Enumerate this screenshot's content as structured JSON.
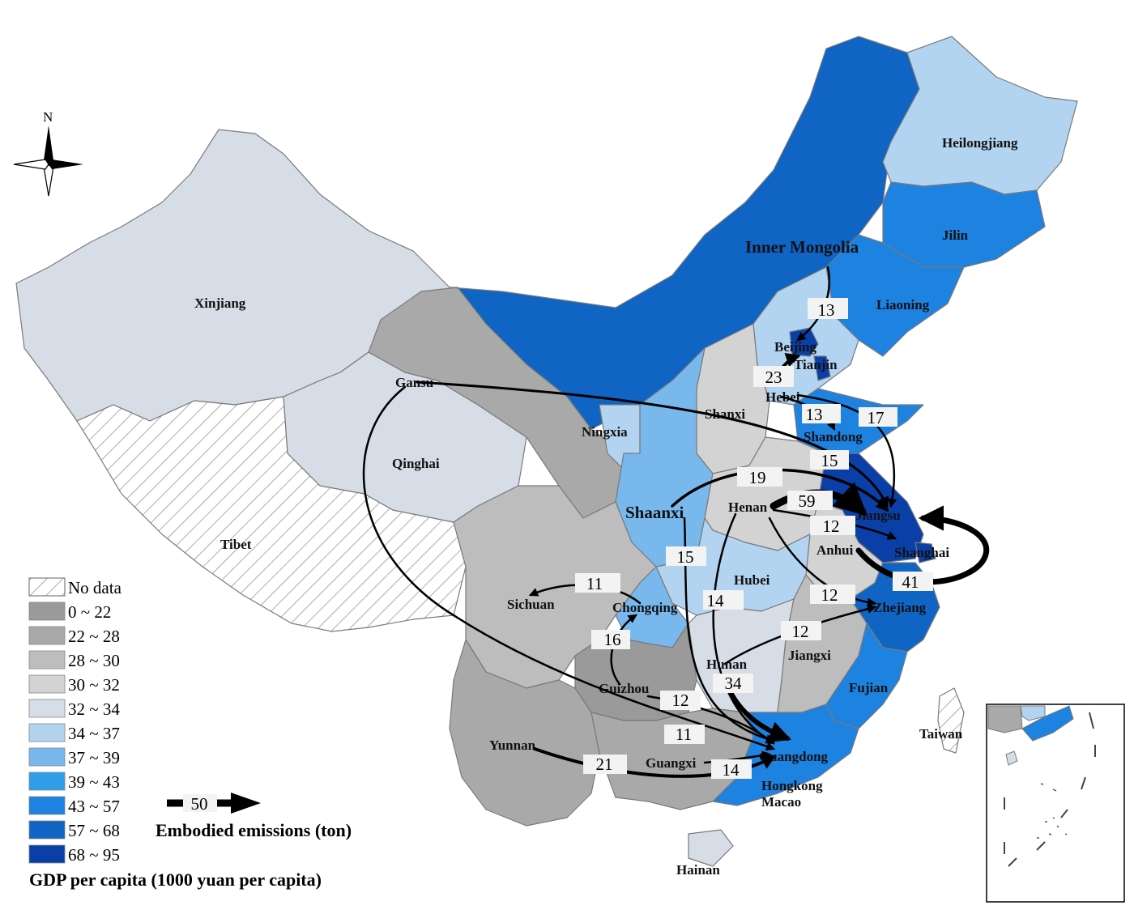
{
  "compass": {
    "label": "N"
  },
  "provinces": {
    "xinjiang": "Xinjiang",
    "tibet": "Tibet",
    "qinghai": "Qinghai",
    "gansu": "Gansu",
    "ningxia": "Ningxia",
    "inner_mongolia": "Inner Mongolia",
    "heilongjiang": "Heilongjiang",
    "jilin": "Jilin",
    "liaoning": "Liaoning",
    "beijing": "Beijing",
    "tianjin": "Tianjin",
    "hebei": "Hebei",
    "shanxi": "Shanxi",
    "shandong": "Shandong",
    "shaanxi": "Shaanxi",
    "henan": "Henan",
    "jiangsu": "Jiangsu",
    "shanghai": "Shanghai",
    "anhui": "Anhui",
    "hubei": "Hubei",
    "sichuan": "Sichuan",
    "chongqing": "Chongqing",
    "zhejiang": "Zhejiang",
    "hunan": "Hunan",
    "jiangxi": "Jiangxi",
    "guizhou": "Guizhou",
    "fujian": "Fujian",
    "yunnan": "Yunnan",
    "guangxi": "Guangxi",
    "guangdong": "Guangdong",
    "hongkong": "Hongkong",
    "macao": "Macao",
    "taiwan": "Taiwan",
    "hainan": "Hainan"
  },
  "flows": [
    {
      "id": "im-bj",
      "value": "13"
    },
    {
      "id": "hb-bj",
      "value": "23"
    },
    {
      "id": "hb-sd",
      "value": "13"
    },
    {
      "id": "hb-js",
      "value": "17"
    },
    {
      "id": "gs-js",
      "value": "15"
    },
    {
      "id": "sx-js",
      "value": "19"
    },
    {
      "id": "hn-js",
      "value": "59"
    },
    {
      "id": "hn-sh",
      "value": "12"
    },
    {
      "id": "ah-js",
      "value": "41"
    },
    {
      "id": "hn-zj",
      "value": "12"
    },
    {
      "id": "hun-zj",
      "value": "12"
    },
    {
      "id": "cq-sc",
      "value": "11"
    },
    {
      "id": "gz-cq",
      "value": "16"
    },
    {
      "id": "sx-gd",
      "value": "15"
    },
    {
      "id": "hn-gd",
      "value": "14"
    },
    {
      "id": "hun-gd",
      "value": "34"
    },
    {
      "id": "gz-gd",
      "value": "12"
    },
    {
      "id": "gs-gd",
      "value": "11"
    },
    {
      "id": "yn-gd",
      "value": "21"
    },
    {
      "id": "gx-gd",
      "value": "14"
    }
  ],
  "legend": {
    "title": "GDP per capita (1000 yuan per capita)",
    "items": [
      {
        "label": "No data",
        "color": "hatch"
      },
      {
        "label": "0 ~ 22",
        "color": "#9a9a9a"
      },
      {
        "label": "22 ~ 28",
        "color": "#a9a9a9"
      },
      {
        "label": "28 ~ 30",
        "color": "#bdbdbd"
      },
      {
        "label": "30 ~ 32",
        "color": "#d3d3d3"
      },
      {
        "label": "32 ~ 34",
        "color": "#d6dde6"
      },
      {
        "label": "34 ~ 37",
        "color": "#b3d4f0"
      },
      {
        "label": "37 ~ 39",
        "color": "#78b8ec"
      },
      {
        "label": "39 ~ 43",
        "color": "#2e9ee8"
      },
      {
        "label": "43 ~ 57",
        "color": "#1d82e0"
      },
      {
        "label": "57 ~ 68",
        "color": "#0f64c4"
      },
      {
        "label": "68 ~ 95",
        "color": "#0a3fa8"
      }
    ]
  },
  "flow_legend": {
    "value": "50",
    "label": "Embodied emissions  (ton)"
  }
}
